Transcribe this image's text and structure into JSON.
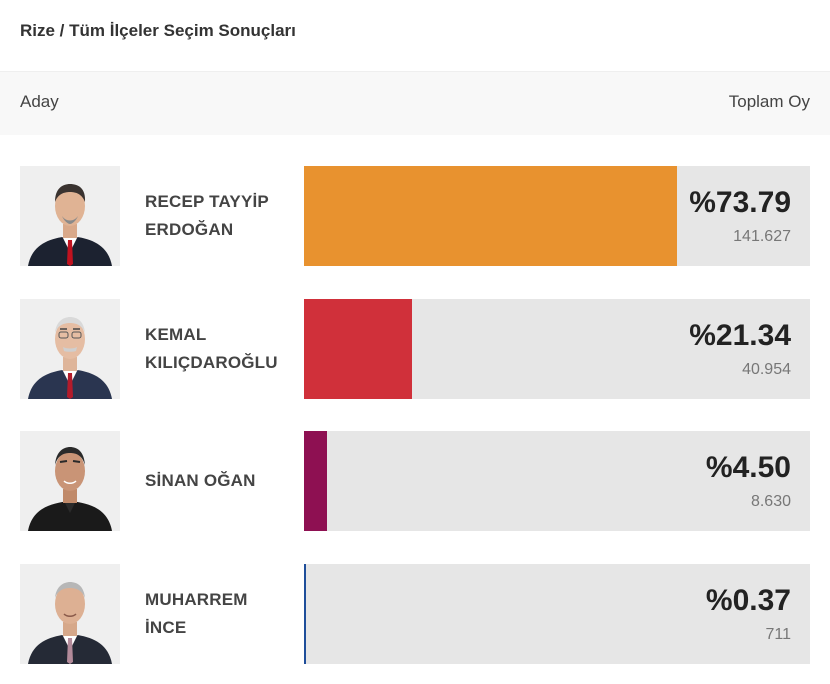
{
  "page": {
    "title": "Rize / Tüm İlçeler Seçim Sonuçları"
  },
  "table": {
    "header_candidate": "Aday",
    "header_total": "Toplam Oy"
  },
  "candidates": [
    {
      "name_line1": "RECEP TAYYİP",
      "name_line2": "ERDOĞAN",
      "percent_label": "%73.79",
      "votes": "141.627",
      "share": 73.79,
      "color": "#e8922f",
      "photo_icon": "candidate-photo"
    },
    {
      "name_line1": "KEMAL",
      "name_line2": "KILIÇDAROĞLU",
      "percent_label": "%21.34",
      "votes": "40.954",
      "share": 21.34,
      "color": "#d0303a",
      "photo_icon": "candidate-photo"
    },
    {
      "name_line1": "SİNAN OĞAN",
      "name_line2": "",
      "percent_label": "%4.50",
      "votes": "8.630",
      "share": 4.5,
      "color": "#8e1052",
      "photo_icon": "candidate-photo"
    },
    {
      "name_line1": "MUHARREM",
      "name_line2": "İNCE",
      "percent_label": "%0.37",
      "votes": "711",
      "share": 0.37,
      "color": "#1f4e9a",
      "photo_icon": "candidate-photo"
    }
  ]
}
